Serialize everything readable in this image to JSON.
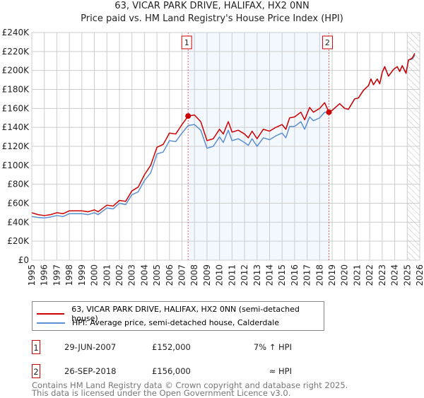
{
  "chart_data": {
    "type": "line",
    "title": "63, VICAR PARK DRIVE, HALIFAX, HX2 0NN",
    "subtitle": "Price paid vs. HM Land Registry's House Price Index (HPI)",
    "xlim": [
      1995,
      2026
    ],
    "ylim": [
      0,
      240000
    ],
    "yticks": [
      "£0",
      "£20K",
      "£40K",
      "£60K",
      "£80K",
      "£100K",
      "£120K",
      "£140K",
      "£160K",
      "£180K",
      "£200K",
      "£220K",
      "£240K"
    ],
    "xticks": [
      "1995",
      "1996",
      "1997",
      "1998",
      "1999",
      "2000",
      "2001",
      "2002",
      "2003",
      "2004",
      "2005",
      "2006",
      "2007",
      "2008",
      "2009",
      "2010",
      "2011",
      "2012",
      "2013",
      "2014",
      "2015",
      "2016",
      "2017",
      "2018",
      "2019",
      "2020",
      "2021",
      "2022",
      "2023",
      "2024",
      "2025",
      "2026"
    ],
    "grid": true,
    "legend_position": "bottom",
    "series": [
      {
        "name": "63, VICAR PARK DRIVE, HALIFAX, HX2 0NN (semi-detached house)",
        "color": "#cc0000",
        "x": [
          1995,
          1995.5,
          1996,
          1996.5,
          1997,
          1997.5,
          1998,
          1998.5,
          1999,
          1999.5,
          2000,
          2000.3,
          2001,
          2001.5,
          2002,
          2002.5,
          2003,
          2003.5,
          2004,
          2004.5,
          2005,
          2005.5,
          2006,
          2006.5,
          2007,
          2007.5,
          2008,
          2008.5,
          2009,
          2009.5,
          2010,
          2010.3,
          2010.7,
          2011,
          2011.5,
          2012,
          2012.3,
          2012.6,
          2013,
          2013.5,
          2014,
          2014.5,
          2015,
          2015.3,
          2015.6,
          2016,
          2016.5,
          2016.8,
          2017.2,
          2017.5,
          2018,
          2018.4,
          2018.74,
          2019,
          2019.6,
          2020,
          2020.3,
          2020.8,
          2021.1,
          2021.5,
          2021.9,
          2022.1,
          2022.3,
          2022.6,
          2022.8,
          2023.0,
          2023.2,
          2023.5,
          2023.9,
          2024.2,
          2024.4,
          2024.6,
          2024.9,
          2025.1,
          2025.4,
          2025.6
        ],
        "y": [
          50000,
          48000,
          47000,
          48000,
          50000,
          49000,
          52000,
          52000,
          52000,
          51000,
          53000,
          51000,
          58000,
          57000,
          63000,
          62000,
          73000,
          77000,
          90000,
          100000,
          119000,
          122000,
          134000,
          133000,
          143000,
          152000,
          153000,
          146000,
          126000,
          128000,
          138000,
          133000,
          146000,
          135000,
          137000,
          133000,
          129000,
          136000,
          128000,
          138000,
          136000,
          140000,
          143000,
          138000,
          150000,
          151000,
          156000,
          148000,
          161000,
          156000,
          160000,
          166000,
          156000,
          158000,
          165000,
          160000,
          159000,
          170000,
          171000,
          179000,
          184000,
          191000,
          185000,
          191000,
          186000,
          198000,
          204000,
          194000,
          201000,
          204000,
          199000,
          205000,
          197000,
          211000,
          213000,
          218000
        ]
      },
      {
        "name": "HPI: Average price, semi-detached house, Calderdale",
        "color": "#5b8fd0",
        "x": [
          1995,
          1995.5,
          1996,
          1996.5,
          1997,
          1997.5,
          1998,
          1998.5,
          1999,
          1999.5,
          2000,
          2000.3,
          2001,
          2001.5,
          2002,
          2002.5,
          2003,
          2003.5,
          2004,
          2004.5,
          2005,
          2005.5,
          2006,
          2006.5,
          2007,
          2007.5,
          2008,
          2008.5,
          2009,
          2009.5,
          2010,
          2010.3,
          2010.7,
          2011,
          2011.5,
          2012,
          2012.3,
          2012.6,
          2013,
          2013.5,
          2014,
          2014.5,
          2015,
          2015.3,
          2015.6,
          2016,
          2016.5,
          2016.8,
          2017.2,
          2017.5,
          2018,
          2018.4,
          2018.74,
          2019,
          2019.6,
          2020,
          2020.3,
          2020.8,
          2021.1,
          2021.5,
          2021.9,
          2022.1,
          2022.3,
          2022.6,
          2022.8,
          2023.0,
          2023.2,
          2023.5,
          2023.9,
          2024.2,
          2024.4,
          2024.6,
          2024.9,
          2025.1,
          2025.4,
          2025.6
        ],
        "y": [
          46000,
          45000,
          44500,
          45500,
          47000,
          46000,
          49000,
          49000,
          49000,
          48000,
          50000,
          48000,
          55000,
          54000,
          60000,
          58500,
          69000,
          72000,
          84000,
          92000,
          112000,
          114000,
          126000,
          125000,
          134000,
          142000,
          143000,
          137000,
          118000,
          120000,
          130000,
          124000,
          137000,
          126000,
          128000,
          124000,
          121000,
          128000,
          120000,
          129000,
          127000,
          131000,
          134000,
          129000,
          141000,
          141000,
          146000,
          138000,
          151000,
          147000,
          150000,
          156000,
          156000,
          158000,
          165000,
          160000,
          159000,
          170000,
          171000,
          179000,
          184000,
          191000,
          185000,
          191000,
          186000,
          198000,
          204000,
          194000,
          201000,
          204000,
          199000,
          205000,
          197000,
          211000,
          212000,
          216000
        ]
      }
    ],
    "shaded_span": [
      2007.49,
      2018.74
    ],
    "hatched_from": 2025.0,
    "annotations": [
      {
        "label": "1",
        "x": 2007.49,
        "y": 152000
      },
      {
        "label": "2",
        "x": 2018.74,
        "y": 156000
      }
    ]
  },
  "legend": {
    "red": "63, VICAR PARK DRIVE, HALIFAX, HX2 0NN (semi-detached house)",
    "blue": "HPI: Average price, semi-detached house, Calderdale"
  },
  "transactions": [
    {
      "num": "1",
      "date": "29-JUN-2007",
      "price": "£152,000",
      "hpi": "7% ↑ HPI"
    },
    {
      "num": "2",
      "date": "26-SEP-2018",
      "price": "£156,000",
      "hpi": "≈ HPI"
    }
  ],
  "footer": {
    "line1": "Contains HM Land Registry data © Crown copyright and database right 2025.",
    "line2": "This data is licensed under the Open Government Licence v3.0."
  }
}
